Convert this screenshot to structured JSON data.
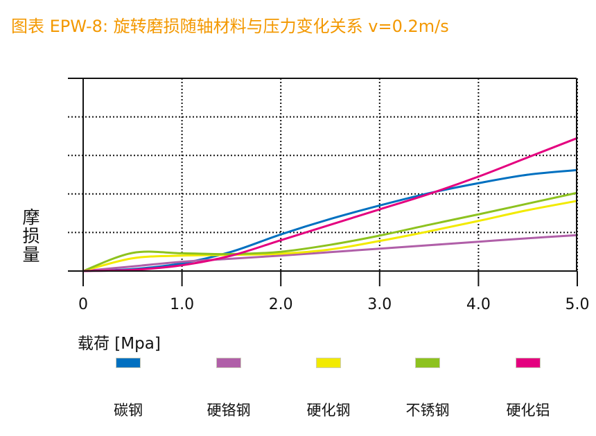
{
  "title": "图表 EPW-8: 旋转磨损随轴材料与压力变化关系 v=0.2m/s",
  "colors": {
    "title": "#f39800"
  },
  "chart_data": {
    "type": "line",
    "title": "图表 EPW-8: 旋转磨损随轴材料与压力变化关系 v=0.2m/s",
    "xlabel": "载荷 [Mpa]",
    "ylabel": "摩损量",
    "x_ticks": [
      "0",
      "1.0",
      "2.0",
      "3.0",
      "4.0",
      "5.0"
    ],
    "xlim": [
      0,
      5.0
    ],
    "ylim": [
      0,
      5
    ],
    "grid": true,
    "legend_position": "bottom",
    "series": [
      {
        "name": "碳钢",
        "color": "#0070c0",
        "x": [
          0,
          0.5,
          1.0,
          1.5,
          2.0,
          2.5,
          3.0,
          3.5,
          4.0,
          4.5,
          5.0
        ],
        "y": [
          0,
          0.05,
          0.2,
          0.5,
          0.95,
          1.35,
          1.7,
          2.02,
          2.28,
          2.5,
          2.62
        ]
      },
      {
        "name": "硬铬钢",
        "color": "#b05fa8",
        "x": [
          0,
          0.5,
          1.0,
          1.5,
          2.0,
          2.5,
          3.0,
          3.5,
          4.0,
          4.5,
          5.0
        ],
        "y": [
          0,
          0.12,
          0.24,
          0.32,
          0.4,
          0.49,
          0.58,
          0.67,
          0.76,
          0.85,
          0.93
        ]
      },
      {
        "name": "硬化钢",
        "color": "#f2ea00",
        "x": [
          0,
          0.5,
          1.0,
          1.5,
          2.0,
          2.5,
          3.0,
          3.5,
          4.0,
          4.5,
          5.0
        ],
        "y": [
          0,
          0.33,
          0.4,
          0.42,
          0.45,
          0.56,
          0.78,
          1.03,
          1.3,
          1.58,
          1.82
        ]
      },
      {
        "name": "不锈钢",
        "color": "#8dc21f",
        "x": [
          0,
          0.5,
          1.0,
          1.5,
          2.0,
          2.5,
          3.0,
          3.5,
          4.0,
          4.5,
          5.0
        ],
        "y": [
          0,
          0.47,
          0.46,
          0.44,
          0.5,
          0.68,
          0.92,
          1.2,
          1.47,
          1.75,
          2.03
        ]
      },
      {
        "name": "硬化铝",
        "color": "#e4007f",
        "x": [
          0,
          0.5,
          1.0,
          1.5,
          2.0,
          2.5,
          3.0,
          3.5,
          4.0,
          4.5,
          5.0
        ],
        "y": [
          0,
          0.03,
          0.15,
          0.4,
          0.8,
          1.2,
          1.6,
          2.0,
          2.45,
          2.95,
          3.45
        ]
      }
    ]
  }
}
